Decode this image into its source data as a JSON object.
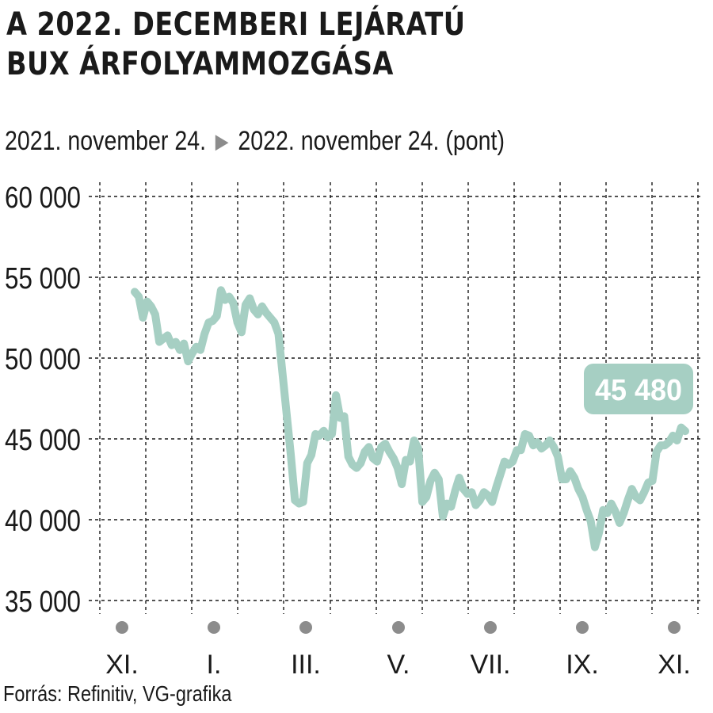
{
  "header": {
    "title_line1": "A 2022. DECEMBERI LEJÁRATÚ",
    "title_line2": "BUX ÁRFOLYAMMOZGÁSA",
    "period_start": "2021. november 24.",
    "period_end": "2022. november 24. (pont)",
    "arrow_icon": "triangle-right-icon"
  },
  "footer": {
    "source": "Forrás: Refinitiv, VG-grafika"
  },
  "colors": {
    "line": "#a6cfc3",
    "label_bg": "#a6cfc3",
    "label_text": "#ffffff",
    "grid": "#1a1a1a",
    "dot": "#8c8c8c"
  },
  "chart_data": {
    "type": "line",
    "title": "A 2022. DECEMBERI LEJÁRATÚ BUX ÁRFOLYAMMOZGÁSA",
    "subtitle": "2021. november 24. ▶ 2022. november 24. (pont)",
    "xlabel": "",
    "ylabel": "",
    "ylim": [
      35000,
      60000
    ],
    "yticks": [
      60000,
      55000,
      50000,
      45000,
      40000,
      35000
    ],
    "ytick_labels": [
      "60 000",
      "55 000",
      "50 000",
      "45 000",
      "40 000",
      "35 000"
    ],
    "xticks": [
      "XI.",
      "I.",
      "III.",
      "V.",
      "VII.",
      "IX.",
      "XI."
    ],
    "grid": true,
    "last_value_label": "45 480",
    "x_start": "2021-11-24",
    "x_end": "2022-11-24",
    "series": [
      {
        "values": [
          54100,
          53800,
          52500,
          53500,
          53200,
          52700,
          51000,
          51200,
          51400,
          50800,
          51000,
          50500,
          50900,
          49800,
          50300,
          50700,
          50500,
          51500,
          52200,
          52300,
          52600,
          54200,
          53600,
          53800,
          53400,
          52200,
          51600,
          53300,
          53700,
          53000,
          52700,
          53200,
          52800,
          52500,
          52200,
          51500,
          49000,
          46500,
          44000,
          41200,
          41000,
          41100,
          43500,
          44000,
          45300,
          45200,
          45500,
          45100,
          45300,
          47700,
          46300,
          46400,
          43900,
          43400,
          43200,
          43500,
          44200,
          44500,
          43800,
          43600,
          44500,
          44700,
          44200,
          43800,
          43200,
          42200,
          43700,
          43600,
          44900,
          44400,
          41100,
          41400,
          42400,
          42900,
          42500,
          40200,
          41000,
          40800,
          41800,
          42600,
          41900,
          41600,
          41700,
          40900,
          41200,
          41700,
          41500,
          41100,
          42000,
          42800,
          43600,
          43400,
          43600,
          44300,
          44300,
          45300,
          45200,
          44600,
          44800,
          44400,
          44600,
          44900,
          44500,
          43900,
          42500,
          42500,
          43000,
          42600,
          41900,
          41400,
          40600,
          39900,
          38300,
          39200,
          40600,
          40400,
          41000,
          40500,
          39800,
          40400,
          41200,
          41900,
          41400,
          41200,
          41700,
          42300,
          42400,
          44200,
          44600,
          44600,
          44800,
          45200,
          44900,
          45700,
          45480
        ]
      }
    ]
  }
}
